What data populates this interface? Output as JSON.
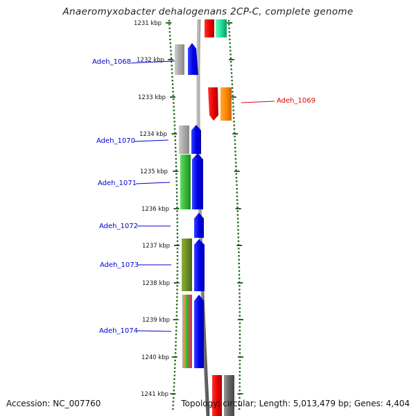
{
  "title": "Anaeromyxobacter dehalogenans 2CP-C, complete genome",
  "footer": {
    "accession": "Accession: NC_007760",
    "topology": "Topology: circular; Length: 5,013,479 bp; Genes: 4,404"
  },
  "ticks": [
    "1231 kbp",
    "1232 kbp",
    "1233 kbp",
    "1234 kbp",
    "1235 kbp",
    "1236 kbp",
    "1237 kbp",
    "1238 kbp",
    "1239 kbp",
    "1240 kbp",
    "1241 kbp"
  ],
  "gene_labels": [
    {
      "id": "gene-label-adeh-1068",
      "text": "Adeh_1068",
      "color": "#0000cc"
    },
    {
      "id": "gene-label-adeh-1069",
      "text": "Adeh_1069",
      "color": "#dd0000"
    },
    {
      "id": "gene-label-adeh-1070",
      "text": "Adeh_1070",
      "color": "#0000cc"
    },
    {
      "id": "gene-label-adeh-1071",
      "text": "Adeh_1071",
      "color": "#0000cc"
    },
    {
      "id": "gene-label-adeh-1072",
      "text": "Adeh_1072",
      "color": "#0000cc"
    },
    {
      "id": "gene-label-adeh-1073",
      "text": "Adeh_1073",
      "color": "#0000cc"
    },
    {
      "id": "gene-label-adeh-1074",
      "text": "Adeh_1074",
      "color": "#0000cc"
    }
  ],
  "colors": {
    "strand_forward_gene": "#0000ee",
    "strand_reverse_gene": "#ee0000",
    "cog_gray": "#a0a0a0",
    "cog_green": "#33bb33",
    "cog_olive": "#6b8e23",
    "cog_orange": "#ff8800",
    "cog_teal": "#22dd99",
    "cog_dark_gray": "#666666",
    "ruler_green": "#226622",
    "backbone": "#888888"
  }
}
